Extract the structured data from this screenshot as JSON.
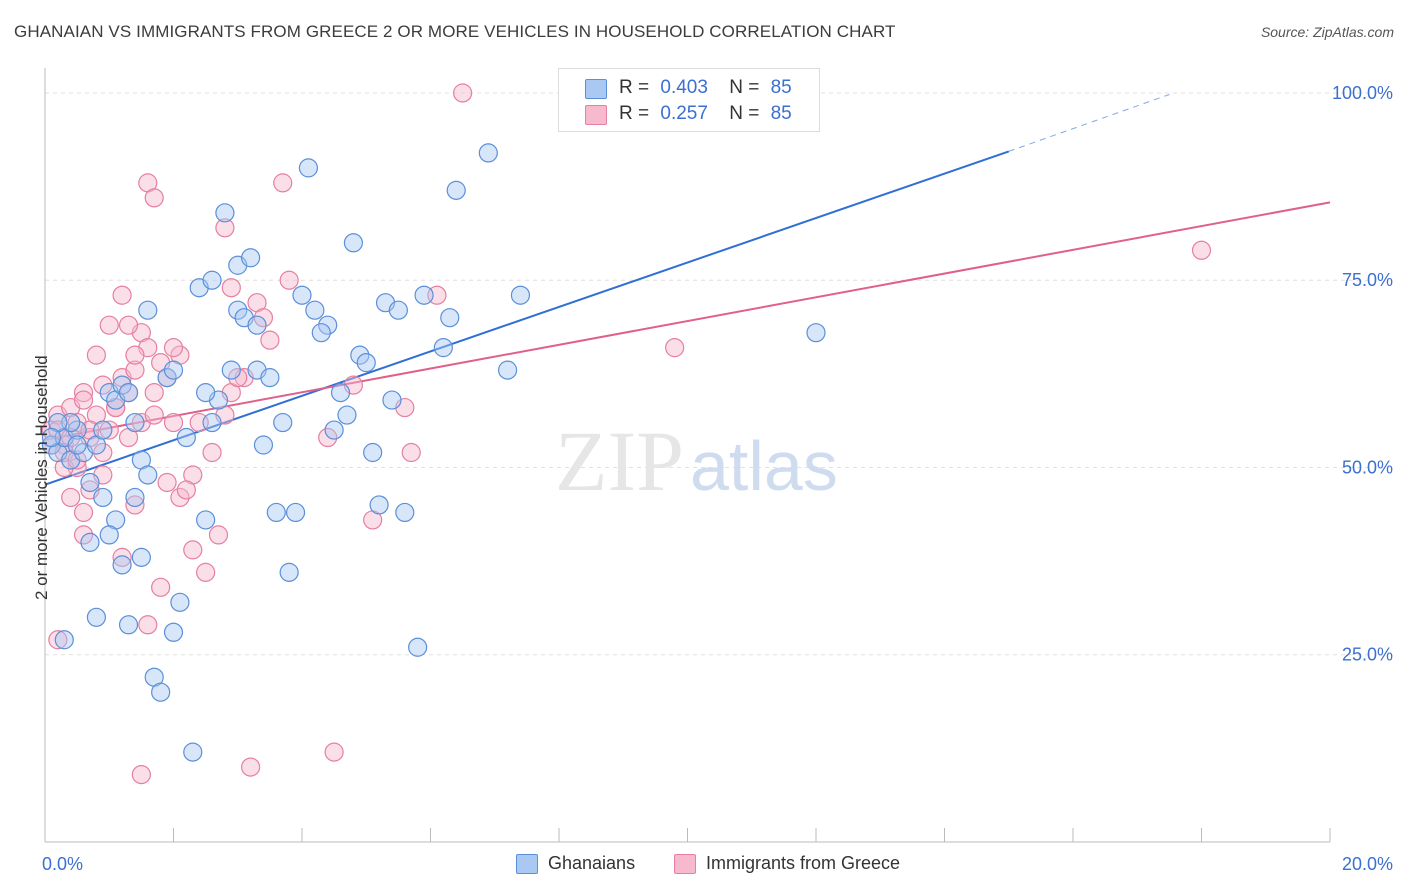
{
  "title": "GHANAIAN VS IMMIGRANTS FROM GREECE 2 OR MORE VEHICLES IN HOUSEHOLD CORRELATION CHART",
  "source": "Source: ZipAtlas.com",
  "watermark": "ZIPatlas",
  "legend": {
    "blue": {
      "r_label": "R =",
      "r_value": "0.403",
      "n_label": "N =",
      "n_value": "85"
    },
    "pink": {
      "r_label": "R =",
      "r_value": "0.257",
      "n_label": "N =",
      "n_value": "85"
    }
  },
  "bottom_legend": {
    "blue": "Ghanaians",
    "pink": "Immigrants from Greece"
  },
  "colors": {
    "blue_fill": "#a9c8f2",
    "blue_stroke": "#5b8fd9",
    "blue_line": "#2f6fd6",
    "pink_fill": "#f7b9cd",
    "pink_stroke": "#e67fa0",
    "pink_line": "#e0608a",
    "tick_label": "#3b6fd0",
    "grid": "#e0e0e0"
  },
  "chart_data": {
    "type": "scatter",
    "title": "GHANAIAN VS IMMIGRANTS FROM GREECE 2 OR MORE VEHICLES IN HOUSEHOLD CORRELATION CHART",
    "xlabel": "",
    "ylabel": "2 or more Vehicles in Household",
    "xlim": [
      0,
      20
    ],
    "ylim": [
      0,
      102
    ],
    "x_tick_labels": [
      "0.0%",
      "20.0%"
    ],
    "y_ticks": [
      25,
      50,
      75,
      100
    ],
    "y_tick_labels": [
      "25.0%",
      "50.0%",
      "75.0%",
      "100.0%"
    ],
    "grid": true,
    "series": [
      {
        "name": "Ghanaians",
        "trend": {
          "x": [
            0,
            15
          ],
          "y": [
            47.7,
            92.2
          ],
          "dashed_to": [
            17.5,
            99.8
          ]
        },
        "points": [
          [
            0.1,
            53
          ],
          [
            0.2,
            52
          ],
          [
            0.3,
            54
          ],
          [
            0.4,
            51
          ],
          [
            0.5,
            55
          ],
          [
            0.6,
            52
          ],
          [
            0.7,
            48
          ],
          [
            0.8,
            53
          ],
          [
            0.9,
            55
          ],
          [
            1.0,
            60
          ],
          [
            1.1,
            59
          ],
          [
            1.2,
            61
          ],
          [
            1.3,
            60
          ],
          [
            1.4,
            56
          ],
          [
            1.5,
            51
          ],
          [
            1.6,
            49
          ],
          [
            0.3,
            27
          ],
          [
            0.8,
            30
          ],
          [
            1.2,
            37
          ],
          [
            1.5,
            38
          ],
          [
            1.7,
            22
          ],
          [
            1.8,
            20
          ],
          [
            2.0,
            28
          ],
          [
            2.1,
            32
          ],
          [
            2.3,
            12
          ],
          [
            2.5,
            43
          ],
          [
            2.6,
            56
          ],
          [
            2.7,
            59
          ],
          [
            2.9,
            63
          ],
          [
            3.0,
            71
          ],
          [
            3.1,
            70
          ],
          [
            3.3,
            63
          ],
          [
            3.5,
            62
          ],
          [
            3.7,
            56
          ],
          [
            3.9,
            44
          ],
          [
            4.1,
            90
          ],
          [
            4.2,
            71
          ],
          [
            4.4,
            69
          ],
          [
            4.5,
            55
          ],
          [
            4.6,
            60
          ],
          [
            4.8,
            80
          ],
          [
            4.9,
            65
          ],
          [
            5.0,
            64
          ],
          [
            5.1,
            52
          ],
          [
            5.2,
            45
          ],
          [
            5.3,
            72
          ],
          [
            5.5,
            71
          ],
          [
            5.6,
            44
          ],
          [
            5.8,
            26
          ],
          [
            6.2,
            66
          ],
          [
            6.3,
            70
          ],
          [
            6.4,
            87
          ],
          [
            6.9,
            92
          ],
          [
            7.2,
            63
          ],
          [
            7.4,
            73
          ],
          [
            1.9,
            62
          ],
          [
            2.2,
            54
          ],
          [
            2.4,
            74
          ],
          [
            2.6,
            75
          ],
          [
            2.8,
            84
          ],
          [
            3.0,
            77
          ],
          [
            3.2,
            78
          ],
          [
            3.4,
            53
          ],
          [
            3.6,
            44
          ],
          [
            3.8,
            36
          ],
          [
            4.0,
            73
          ],
          [
            4.3,
            68
          ],
          [
            4.7,
            57
          ],
          [
            5.4,
            59
          ],
          [
            1.4,
            46
          ],
          [
            1.1,
            43
          ],
          [
            0.9,
            46
          ],
          [
            0.7,
            40
          ],
          [
            0.5,
            53
          ],
          [
            0.4,
            56
          ],
          [
            0.2,
            56
          ],
          [
            0.1,
            54
          ],
          [
            1.6,
            71
          ],
          [
            2.0,
            63
          ],
          [
            12.0,
            68
          ],
          [
            5.9,
            73
          ],
          [
            2.5,
            60
          ],
          [
            3.3,
            69
          ],
          [
            1.3,
            29
          ],
          [
            1.0,
            41
          ]
        ]
      },
      {
        "name": "Immigrants from Greece",
        "trend": {
          "x": [
            0,
            20
          ],
          "y": [
            53.7,
            85.4
          ]
        },
        "points": [
          [
            0.1,
            55
          ],
          [
            0.2,
            57
          ],
          [
            0.3,
            53
          ],
          [
            0.4,
            58
          ],
          [
            0.5,
            56
          ],
          [
            0.6,
            60
          ],
          [
            0.7,
            54
          ],
          [
            0.8,
            57
          ],
          [
            0.9,
            61
          ],
          [
            1.0,
            55
          ],
          [
            1.1,
            58
          ],
          [
            1.2,
            62
          ],
          [
            1.3,
            60
          ],
          [
            1.4,
            63
          ],
          [
            1.5,
            68
          ],
          [
            1.6,
            66
          ],
          [
            1.7,
            60
          ],
          [
            1.8,
            64
          ],
          [
            1.9,
            62
          ],
          [
            2.0,
            56
          ],
          [
            0.2,
            27
          ],
          [
            0.6,
            44
          ],
          [
            0.9,
            49
          ],
          [
            1.2,
            38
          ],
          [
            1.4,
            45
          ],
          [
            1.6,
            29
          ],
          [
            1.8,
            34
          ],
          [
            2.1,
            46
          ],
          [
            2.3,
            39
          ],
          [
            2.5,
            36
          ],
          [
            2.7,
            41
          ],
          [
            2.9,
            60
          ],
          [
            3.1,
            62
          ],
          [
            3.3,
            72
          ],
          [
            3.5,
            67
          ],
          [
            3.8,
            75
          ],
          [
            4.4,
            54
          ],
          [
            4.8,
            61
          ],
          [
            5.1,
            43
          ],
          [
            5.6,
            58
          ],
          [
            6.1,
            73
          ],
          [
            6.5,
            100
          ],
          [
            1.5,
            9
          ],
          [
            3.2,
            10
          ],
          [
            4.5,
            12
          ],
          [
            1.6,
            88
          ],
          [
            1.7,
            86
          ],
          [
            3.7,
            88
          ],
          [
            2.8,
            82
          ],
          [
            2.9,
            74
          ],
          [
            3.4,
            70
          ],
          [
            1.2,
            73
          ],
          [
            1.3,
            69
          ],
          [
            0.8,
            65
          ],
          [
            1.0,
            69
          ],
          [
            0.4,
            46
          ],
          [
            0.6,
            41
          ],
          [
            0.5,
            50
          ],
          [
            0.3,
            50
          ],
          [
            0.7,
            47
          ],
          [
            0.9,
            52
          ],
          [
            1.1,
            58
          ],
          [
            1.3,
            54
          ],
          [
            1.5,
            56
          ],
          [
            1.7,
            57
          ],
          [
            1.9,
            48
          ],
          [
            2.1,
            65
          ],
          [
            2.3,
            49
          ],
          [
            2.6,
            52
          ],
          [
            2.8,
            57
          ],
          [
            3.0,
            62
          ],
          [
            0.1,
            53
          ],
          [
            0.2,
            55
          ],
          [
            0.3,
            52
          ],
          [
            0.4,
            54
          ],
          [
            0.5,
            51
          ],
          [
            0.6,
            59
          ],
          [
            0.7,
            55
          ],
          [
            1.4,
            65
          ],
          [
            2.2,
            47
          ],
          [
            2.4,
            56
          ],
          [
            5.7,
            52
          ],
          [
            9.8,
            66
          ],
          [
            18.0,
            79
          ],
          [
            2.0,
            66
          ]
        ]
      }
    ]
  }
}
